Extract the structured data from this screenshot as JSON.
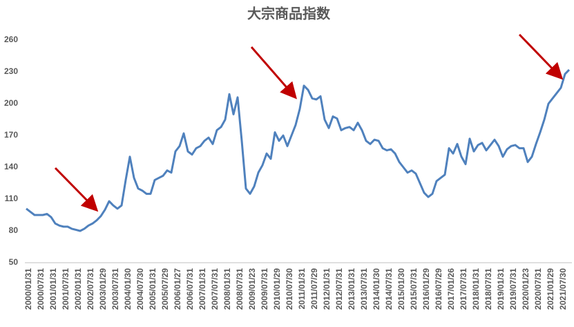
{
  "chart_data": {
    "type": "line",
    "title": "大宗商品指数",
    "categories": [
      "2000/01/31",
      null,
      null,
      "2000/07/31",
      null,
      null,
      "2001/01/31",
      null,
      null,
      "2001/07/31",
      null,
      null,
      "2002/01/31",
      null,
      null,
      "2002/07/31",
      null,
      null,
      "2003/01/29",
      null,
      null,
      "2003/07/31",
      null,
      null,
      "2004/01/30",
      null,
      null,
      "2004/07/30",
      null,
      null,
      "2005/01/31",
      null,
      null,
      "2005/07/29",
      null,
      null,
      "2006/01/27",
      null,
      null,
      "2006/07/31",
      null,
      null,
      "2007/01/31",
      null,
      null,
      "2007/07/31",
      null,
      null,
      "2008/01/31",
      null,
      null,
      "2008/07/31",
      null,
      null,
      "2009/01/23",
      null,
      null,
      "2009/07/31",
      null,
      null,
      "2010/01/29",
      null,
      null,
      "2010/07/30",
      null,
      null,
      "2011/01/31",
      null,
      null,
      "2011/07/29",
      null,
      null,
      "2012/01/31",
      null,
      null,
      "2012/07/31",
      null,
      null,
      "2013/01/31",
      null,
      null,
      "2013/07/31",
      null,
      null,
      "2014/01/30",
      null,
      null,
      "2014/07/31",
      null,
      null,
      "2015/01/30",
      null,
      null,
      "2015/07/31",
      null,
      null,
      "2016/01/29",
      null,
      null,
      "2016/07/29",
      null,
      null,
      "2017/01/26",
      null,
      null,
      "2017/07/31",
      null,
      null,
      "2018/01/31",
      null,
      null,
      "2018/07/31",
      null,
      null,
      "2019/01/31",
      null,
      null,
      "2019/07/31",
      null,
      null,
      "2020/01/23",
      null,
      null,
      "2020/07/31",
      null,
      null,
      "2021/01/29",
      null,
      null,
      "2021/07/30",
      null,
      null
    ],
    "series": [
      {
        "color": "#4f81bd",
        "values": [
          101,
          98,
          95,
          95,
          95,
          96,
          93,
          87,
          85,
          84,
          84,
          82,
          81,
          80,
          82,
          85,
          87,
          90,
          94,
          100,
          108,
          104,
          101,
          104,
          128,
          150,
          130,
          120,
          118,
          115,
          115,
          128,
          130,
          132,
          137,
          135,
          155,
          160,
          172,
          155,
          152,
          158,
          160,
          165,
          168,
          162,
          175,
          178,
          185,
          209,
          190,
          206,
          165,
          120,
          115,
          122,
          135,
          142,
          153,
          148,
          173,
          165,
          170,
          160,
          170,
          180,
          195,
          217,
          213,
          205,
          204,
          207,
          185,
          177,
          188,
          186,
          175,
          177,
          178,
          175,
          182,
          175,
          165,
          162,
          166,
          165,
          158,
          156,
          157,
          153,
          145,
          140,
          135,
          137,
          134,
          125,
          116,
          112,
          115,
          127,
          130,
          133,
          158,
          153,
          162,
          150,
          143,
          167,
          155,
          161,
          163,
          156,
          161,
          166,
          160,
          150,
          157,
          160,
          161,
          158,
          158,
          145,
          150,
          162,
          173,
          185,
          200,
          205,
          210,
          215,
          228,
          232
        ]
      }
    ],
    "ylim": [
      50,
      260
    ],
    "yticks": [
      50,
      80,
      110,
      140,
      170,
      200,
      230,
      260
    ],
    "grid": false
  }
}
